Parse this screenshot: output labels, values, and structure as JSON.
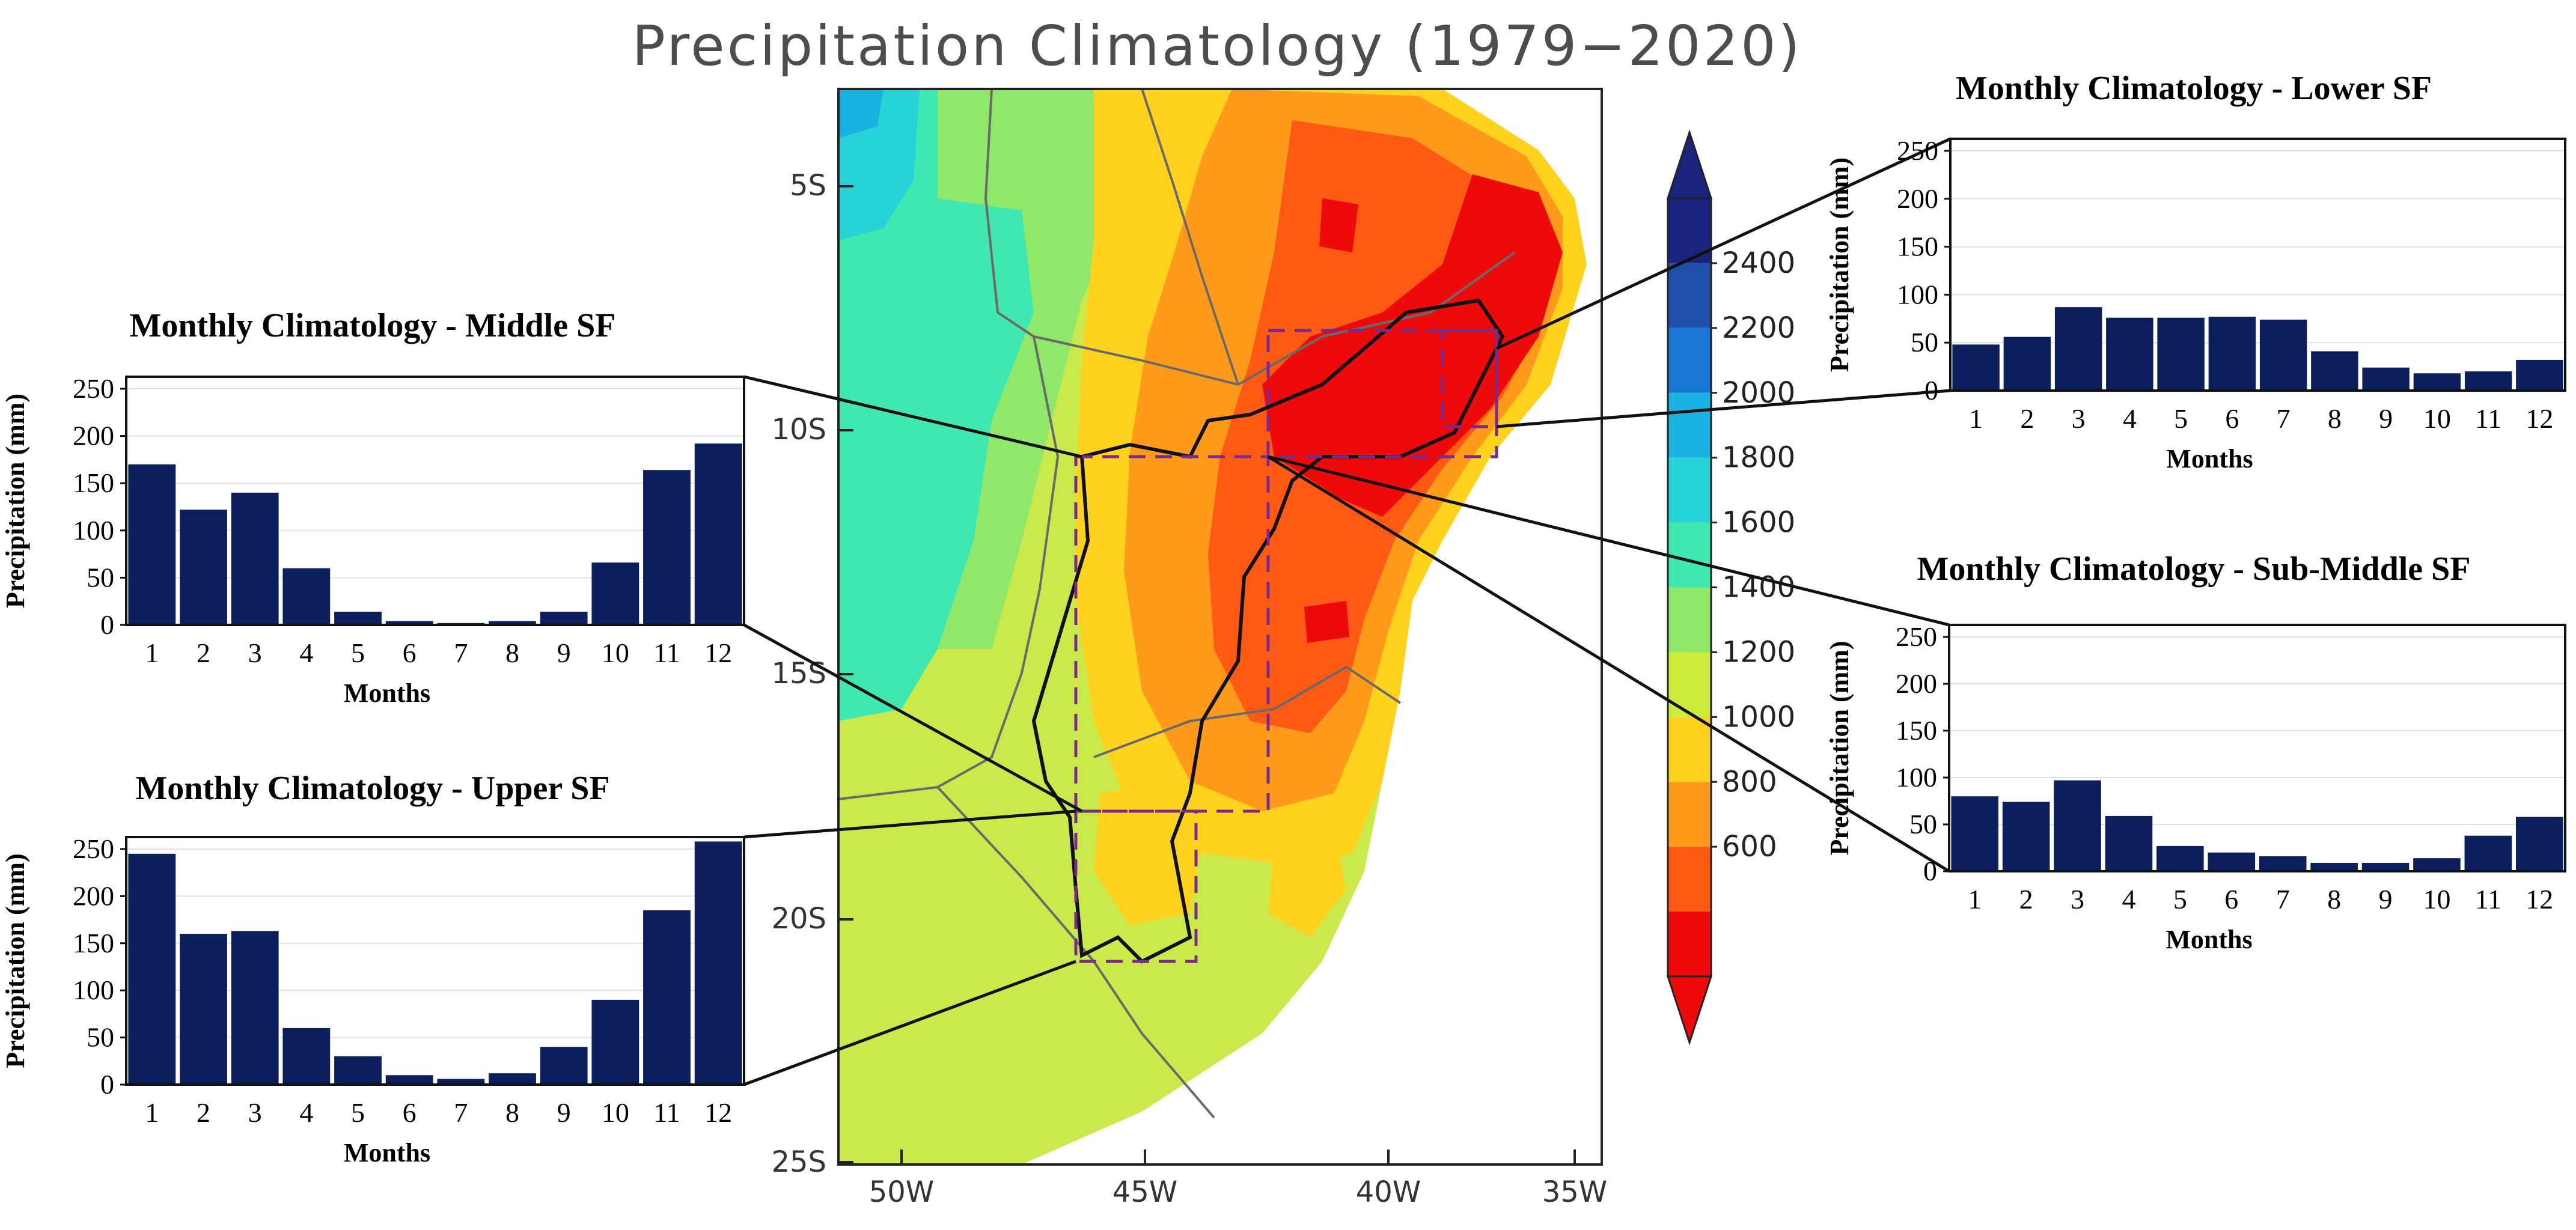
{
  "map": {
    "title": "Precipitation Climatology (1979−2020)",
    "lat_labels": [
      "5S",
      "10S",
      "15S",
      "20S",
      "25S"
    ],
    "lon_labels": [
      "50W",
      "45W",
      "40W",
      "35W"
    ],
    "colorbar": {
      "labels": [
        "2400",
        "2200",
        "2000",
        "1800",
        "1600",
        "1400",
        "1200",
        "1000",
        "800",
        "600"
      ],
      "colors": [
        "#1a237e",
        "#1f4fa8",
        "#1976d2",
        "#1ab2e0",
        "#26d3d6",
        "#3fe8b0",
        "#8fe86a",
        "#cdeb3a",
        "#ffd21e",
        "#ff9a1a",
        "#ff5a14",
        "#ee0a0a"
      ]
    }
  },
  "chart_data": [
    {
      "type": "bar",
      "title": "Monthly Climatology - Middle SF",
      "categories": [
        "1",
        "2",
        "3",
        "4",
        "5",
        "6",
        "7",
        "8",
        "9",
        "10",
        "11",
        "12"
      ],
      "values": [
        170,
        122,
        140,
        60,
        14,
        4,
        2,
        4,
        14,
        66,
        164,
        192
      ],
      "xlabel": "Months",
      "ylabel": "Precipitation (mm)",
      "ylim": [
        0,
        250
      ],
      "yticks": [
        "0",
        "50",
        "100",
        "150",
        "200",
        "250"
      ]
    },
    {
      "type": "bar",
      "title": "Monthly Climatology - Upper SF",
      "categories": [
        "1",
        "2",
        "3",
        "4",
        "5",
        "6",
        "7",
        "8",
        "9",
        "10",
        "11",
        "12"
      ],
      "values": [
        245,
        160,
        163,
        60,
        30,
        10,
        6,
        12,
        40,
        90,
        185,
        258
      ],
      "xlabel": "Months",
      "ylabel": "Precipitation (mm)",
      "ylim": [
        0,
        250
      ],
      "yticks": [
        "0",
        "50",
        "100",
        "150",
        "200",
        "250"
      ]
    },
    {
      "type": "bar",
      "title": "Monthly Climatology - Lower SF",
      "categories": [
        "1",
        "2",
        "3",
        "4",
        "5",
        "6",
        "7",
        "8",
        "9",
        "10",
        "11",
        "12"
      ],
      "values": [
        48,
        56,
        87,
        76,
        76,
        77,
        74,
        41,
        24,
        18,
        20,
        32
      ],
      "xlabel": "Months",
      "ylabel": "Precipitation (mm)",
      "ylim": [
        0,
        250
      ],
      "yticks": [
        "0",
        "50",
        "100",
        "150",
        "200",
        "250"
      ]
    },
    {
      "type": "bar",
      "title": "Monthly Climatology - Sub-Middle SF",
      "categories": [
        "1",
        "2",
        "3",
        "4",
        "5",
        "6",
        "7",
        "8",
        "9",
        "10",
        "11",
        "12"
      ],
      "values": [
        80,
        74,
        97,
        59,
        27,
        20,
        16,
        9,
        9,
        14,
        38,
        58
      ],
      "xlabel": "Months",
      "ylabel": "Precipitation (mm)",
      "ylim": [
        0,
        250
      ],
      "yticks": [
        "0",
        "50",
        "100",
        "150",
        "200",
        "250"
      ]
    }
  ]
}
